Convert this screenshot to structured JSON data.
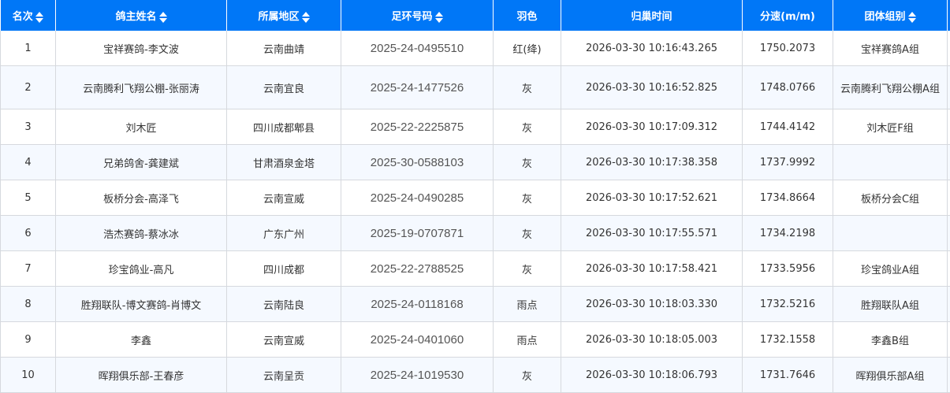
{
  "headers": [
    {
      "label": "名次",
      "sortable": true
    },
    {
      "label": "鸽主姓名",
      "sortable": true
    },
    {
      "label": "所属地区",
      "sortable": true
    },
    {
      "label": "足环号码",
      "sortable": true
    },
    {
      "label": "羽色",
      "sortable": false
    },
    {
      "label": "归巢时间",
      "sortable": false
    },
    {
      "label": "分速(m/m)",
      "sortable": false
    },
    {
      "label": "团体组别",
      "sortable": true
    }
  ],
  "rows": [
    [
      "1",
      "宝祥赛鸽-李文波",
      "云南曲靖",
      "2025-24-0495510",
      "红(绛)",
      "2026-03-30 10:16:43.265",
      "1750.2073",
      "宝祥赛鸽A组"
    ],
    [
      "2",
      "云南腾利飞翔公棚-张丽涛",
      "云南宜良",
      "2025-24-1477526",
      "灰",
      "2026-03-30 10:16:52.825",
      "1748.0766",
      "云南腾利飞翔公棚A组"
    ],
    [
      "3",
      "刘木匠",
      "四川成都郫县",
      "2025-22-2225875",
      "灰",
      "2026-03-30 10:17:09.312",
      "1744.4142",
      "刘木匠F组"
    ],
    [
      "4",
      "兄弟鸽舍-龚建斌",
      "甘肃酒泉金塔",
      "2025-30-0588103",
      "灰",
      "2026-03-30 10:17:38.358",
      "1737.9992",
      ""
    ],
    [
      "5",
      "板桥分会-高泽飞",
      "云南宣威",
      "2025-24-0490285",
      "灰",
      "2026-03-30 10:17:52.621",
      "1734.8664",
      "板桥分会C组"
    ],
    [
      "6",
      "浩杰赛鸽-蔡冰冰",
      "广东广州",
      "2025-19-0707871",
      "灰",
      "2026-03-30 10:17:55.571",
      "1734.2198",
      ""
    ],
    [
      "7",
      "珍宝鸽业-高凡",
      "四川成都",
      "2025-22-2788525",
      "灰",
      "2026-03-30 10:17:58.421",
      "1733.5956",
      "珍宝鸽业A组"
    ],
    [
      "8",
      "胜翔联队-博文赛鸽-肖博文",
      "云南陆良",
      "2025-24-0118168",
      "雨点",
      "2026-03-30 10:18:03.330",
      "1732.5216",
      "胜翔联队A组"
    ],
    [
      "9",
      "李鑫",
      "云南宣威",
      "2025-24-0401060",
      "雨点",
      "2026-03-30 10:18:05.003",
      "1732.1558",
      "李鑫B组"
    ],
    [
      "10",
      "晖翔俱乐部-王春彦",
      "云南呈贡",
      "2025-24-1019530",
      "灰",
      "2026-03-30 10:18:06.793",
      "1731.7646",
      "晖翔俱乐部A组"
    ]
  ],
  "colors": {
    "header_bg": "#0077f7",
    "row_alt_bg": "#f5f9ff"
  }
}
